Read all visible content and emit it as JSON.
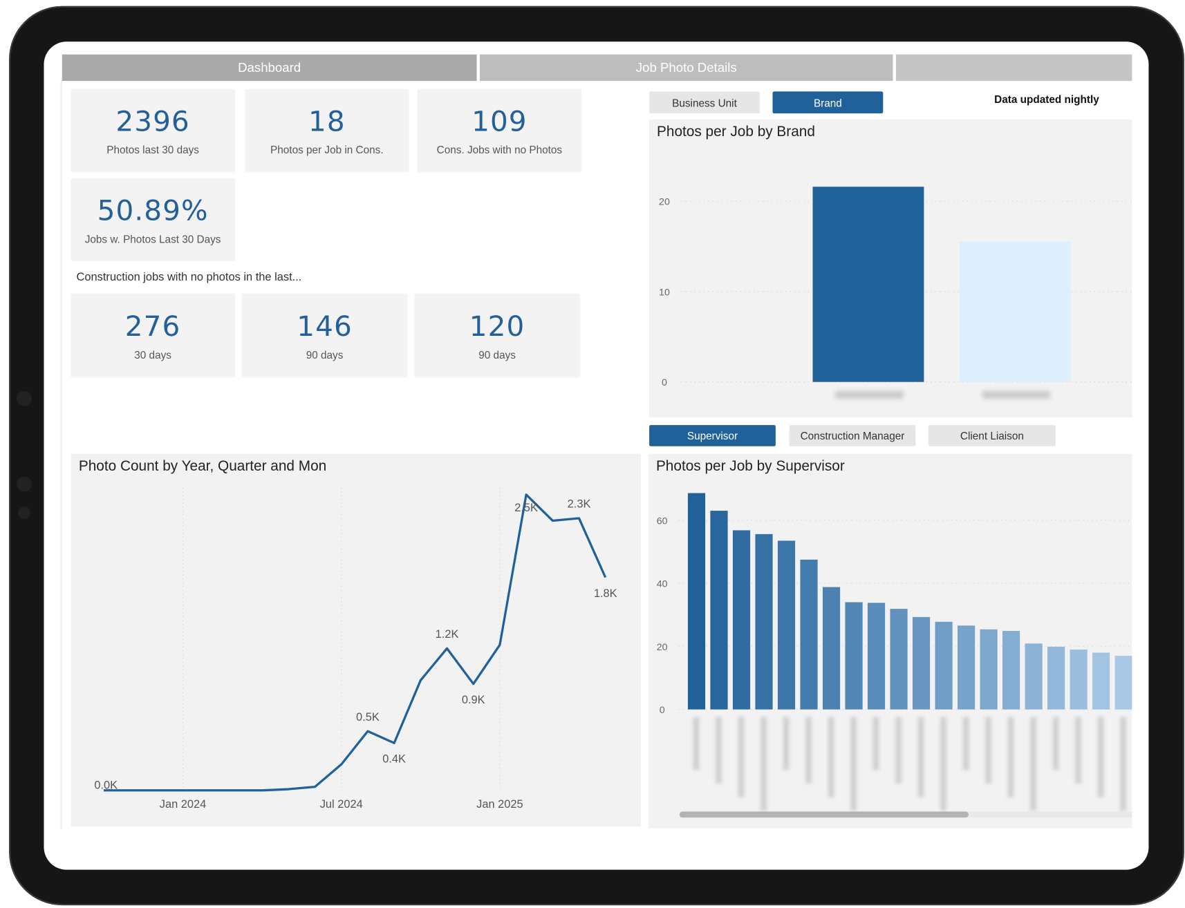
{
  "tabs": [
    {
      "label": "Dashboard",
      "active": true
    },
    {
      "label": "Job Photo Details",
      "active": false
    },
    {
      "label": "",
      "active": false
    }
  ],
  "kpis": [
    {
      "value": "2396",
      "label": "Photos last 30 days"
    },
    {
      "value": "18",
      "label": "Photos per Job in Cons."
    },
    {
      "value": "109",
      "label": "Cons. Jobs with no Photos"
    },
    {
      "value": "50.89%",
      "label": "Jobs w. Photos Last 30 Days"
    }
  ],
  "no_photos_caption": "Construction jobs with no photos in the last...",
  "no_photos_kpis": [
    {
      "value": "276",
      "label": "30 days"
    },
    {
      "value": "146",
      "label": "90 days"
    },
    {
      "value": "120",
      "label": "90 days"
    }
  ],
  "brand_toggle": [
    {
      "label": "Business Unit",
      "active": false
    },
    {
      "label": "Brand",
      "active": true
    }
  ],
  "data_note": "Data updated nightly",
  "role_toggle": [
    {
      "label": "Supervisor",
      "active": true
    },
    {
      "label": "Construction Manager",
      "active": false
    },
    {
      "label": "Client Liaison",
      "active": false
    }
  ],
  "colors": {
    "accent": "#21619a",
    "light_bar": "#ddeeff",
    "panel": "#f2f2f2",
    "kpi": "#23609a"
  },
  "chart_data": [
    {
      "type": "bar",
      "title": "Photos per Job by Brand",
      "categories": [
        "",
        ""
      ],
      "values": [
        21.6,
        15.5
      ],
      "yticks": [
        "0",
        "10",
        "20"
      ],
      "ylim": [
        0,
        25
      ],
      "grid": true,
      "colors": [
        "#21619a",
        "#ddeeff"
      ]
    },
    {
      "type": "line",
      "title": "Photo Count by Year, Quarter and Mon",
      "x": [
        "2023-10",
        "2023-11",
        "2023-12",
        "2024-01",
        "2024-02",
        "2024-03",
        "2024-04",
        "2024-05",
        "2024-06",
        "2024-07",
        "2024-08",
        "2024-09",
        "2024-10",
        "2024-11",
        "2024-12",
        "2025-01",
        "2025-02",
        "2025-03",
        "2025-04",
        "2025-05"
      ],
      "values": [
        0,
        0,
        0,
        0,
        0,
        0,
        0,
        10,
        30,
        220,
        500,
        400,
        930,
        1200,
        900,
        1230,
        2500,
        2280,
        2300,
        1800
      ],
      "point_labels": {
        "0": "0.0K",
        "10": "0.5K",
        "11": "0.4K",
        "13": "1.2K",
        "14": "0.9K",
        "16": "2.5K",
        "18": "2.3K",
        "19": "1.8K"
      },
      "xticks": [
        {
          "x": "2024-01",
          "label": "Jan 2024"
        },
        {
          "x": "2024-07",
          "label": "Jul 2024"
        },
        {
          "x": "2025-01",
          "label": "Jan 2025"
        }
      ],
      "ylim": [
        0,
        2600
      ],
      "grid": true,
      "color": "#21619a"
    },
    {
      "type": "bar",
      "title": "Photos per Job by Supervisor",
      "values": [
        68.6,
        63,
        56.8,
        55.6,
        53.5,
        47.5,
        38.8,
        34,
        33.8,
        31.9,
        29.3,
        27.8,
        26.6,
        25.4,
        24.9,
        20.9,
        19.9,
        19,
        18,
        17
      ],
      "yticks": [
        "0",
        "20",
        "40",
        "60"
      ],
      "ylim": [
        0,
        70
      ],
      "grid": true,
      "color_range": [
        "#21619a",
        "#a9c8e6"
      ]
    }
  ]
}
